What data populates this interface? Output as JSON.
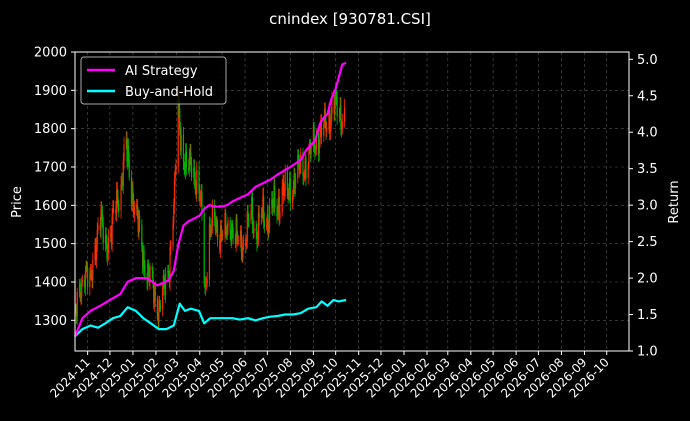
{
  "chart_data": {
    "type": "line",
    "title": "cnindex [930781.CSI]",
    "ylabel_left": "Price",
    "ylabel_right": "Return",
    "xlim": [
      "2024-10-15",
      "2026-10-31"
    ],
    "ylim_left": [
      1220,
      2000
    ],
    "ylim_right": [
      1.0,
      5.1
    ],
    "yticks_left": [
      1300,
      1400,
      1500,
      1600,
      1700,
      1800,
      1900,
      2000
    ],
    "yticks_right": [
      1.0,
      1.5,
      2.0,
      2.5,
      3.0,
      3.5,
      4.0,
      4.5,
      5.0
    ],
    "xticks": [
      "2024-11",
      "2024-12",
      "2025-01",
      "2025-02",
      "2025-03",
      "2025-04",
      "2025-05",
      "2025-06",
      "2025-07",
      "2025-08",
      "2025-09",
      "2025-10",
      "2025-11",
      "2025-12",
      "2026-01",
      "2026-02",
      "2026-03",
      "2026-04",
      "2026-05",
      "2026-06",
      "2026-07",
      "2026-08",
      "2026-09",
      "2026-10"
    ],
    "grid": true,
    "legend_position": "top-left",
    "colors": {
      "up": "#ff2a00",
      "down": "#00b400",
      "ai": "#ff00ff",
      "bh": "#00ffff",
      "background": "#000000",
      "grid": "#555555",
      "text": "#ffffff"
    },
    "series": [
      {
        "name": "AI Strategy",
        "axis": "right",
        "color": "#ff00ff",
        "points": [
          [
            "2024-10-15",
            1.2
          ],
          [
            "2024-10-25",
            1.45
          ],
          [
            "2024-11-05",
            1.55
          ],
          [
            "2024-11-18",
            1.62
          ],
          [
            "2024-12-01",
            1.7
          ],
          [
            "2024-12-15",
            1.78
          ],
          [
            "2024-12-25",
            1.95
          ],
          [
            "2025-01-05",
            2.0
          ],
          [
            "2025-01-20",
            2.0
          ],
          [
            "2025-02-03",
            1.9
          ],
          [
            "2025-02-10",
            1.93
          ],
          [
            "2025-02-18",
            1.97
          ],
          [
            "2025-02-25",
            2.1
          ],
          [
            "2025-03-03",
            2.45
          ],
          [
            "2025-03-10",
            2.72
          ],
          [
            "2025-03-17",
            2.78
          ],
          [
            "2025-03-25",
            2.82
          ],
          [
            "2025-04-01",
            2.86
          ],
          [
            "2025-04-07",
            2.95
          ],
          [
            "2025-04-14",
            3.0
          ],
          [
            "2025-04-21",
            2.98
          ],
          [
            "2025-05-01",
            2.98
          ],
          [
            "2025-05-08",
            3.0
          ],
          [
            "2025-05-15",
            3.05
          ],
          [
            "2025-05-25",
            3.1
          ],
          [
            "2025-06-05",
            3.15
          ],
          [
            "2025-06-15",
            3.25
          ],
          [
            "2025-06-25",
            3.3
          ],
          [
            "2025-07-05",
            3.35
          ],
          [
            "2025-07-15",
            3.42
          ],
          [
            "2025-07-25",
            3.48
          ],
          [
            "2025-08-05",
            3.55
          ],
          [
            "2025-08-15",
            3.62
          ],
          [
            "2025-08-22",
            3.75
          ],
          [
            "2025-08-28",
            3.82
          ],
          [
            "2025-09-03",
            3.88
          ],
          [
            "2025-09-10",
            4.12
          ],
          [
            "2025-09-15",
            4.2
          ],
          [
            "2025-09-20",
            4.25
          ],
          [
            "2025-09-25",
            4.45
          ],
          [
            "2025-10-01",
            4.6
          ],
          [
            "2025-10-06",
            4.78
          ],
          [
            "2025-10-10",
            4.93
          ],
          [
            "2025-10-15",
            4.95
          ]
        ]
      },
      {
        "name": "Buy-and-Hold",
        "axis": "right",
        "color": "#00ffff",
        "points": [
          [
            "2024-10-15",
            1.2
          ],
          [
            "2024-10-25",
            1.3
          ],
          [
            "2024-11-05",
            1.35
          ],
          [
            "2024-11-15",
            1.32
          ],
          [
            "2024-11-25",
            1.38
          ],
          [
            "2024-12-05",
            1.45
          ],
          [
            "2024-12-15",
            1.48
          ],
          [
            "2024-12-25",
            1.6
          ],
          [
            "2025-01-05",
            1.55
          ],
          [
            "2025-01-15",
            1.45
          ],
          [
            "2025-01-25",
            1.38
          ],
          [
            "2025-02-05",
            1.3
          ],
          [
            "2025-02-15",
            1.3
          ],
          [
            "2025-02-25",
            1.35
          ],
          [
            "2025-03-05",
            1.65
          ],
          [
            "2025-03-12",
            1.55
          ],
          [
            "2025-03-20",
            1.58
          ],
          [
            "2025-03-31",
            1.55
          ],
          [
            "2025-04-07",
            1.38
          ],
          [
            "2025-04-15",
            1.45
          ],
          [
            "2025-04-25",
            1.45
          ],
          [
            "2025-05-05",
            1.45
          ],
          [
            "2025-05-15",
            1.45
          ],
          [
            "2025-05-25",
            1.43
          ],
          [
            "2025-06-05",
            1.45
          ],
          [
            "2025-06-15",
            1.42
          ],
          [
            "2025-06-25",
            1.45
          ],
          [
            "2025-07-05",
            1.47
          ],
          [
            "2025-07-15",
            1.48
          ],
          [
            "2025-07-25",
            1.5
          ],
          [
            "2025-08-05",
            1.5
          ],
          [
            "2025-08-15",
            1.52
          ],
          [
            "2025-08-25",
            1.58
          ],
          [
            "2025-09-05",
            1.6
          ],
          [
            "2025-09-12",
            1.68
          ],
          [
            "2025-09-20",
            1.62
          ],
          [
            "2025-09-28",
            1.7
          ],
          [
            "2025-10-05",
            1.68
          ],
          [
            "2025-10-15",
            1.7
          ]
        ]
      },
      {
        "name": "Price",
        "axis": "left",
        "kind": "candlestick_path",
        "points": [
          [
            "2024-10-15",
            1300
          ],
          [
            "2024-10-22",
            1380
          ],
          [
            "2024-10-28",
            1440
          ],
          [
            "2024-11-04",
            1380
          ],
          [
            "2024-11-11",
            1500
          ],
          [
            "2024-11-18",
            1560
          ],
          [
            "2024-11-25",
            1500
          ],
          [
            "2024-12-02",
            1520
          ],
          [
            "2024-12-09",
            1600
          ],
          [
            "2024-12-16",
            1650
          ],
          [
            "2024-12-22",
            1760
          ],
          [
            "2024-12-29",
            1660
          ],
          [
            "2025-01-05",
            1580
          ],
          [
            "2025-01-12",
            1500
          ],
          [
            "2025-01-19",
            1430
          ],
          [
            "2025-01-26",
            1400
          ],
          [
            "2025-02-05",
            1330
          ],
          [
            "2025-02-12",
            1380
          ],
          [
            "2025-02-19",
            1450
          ],
          [
            "2025-02-26",
            1620
          ],
          [
            "2025-03-03",
            1860
          ],
          [
            "2025-03-08",
            1750
          ],
          [
            "2025-03-14",
            1680
          ],
          [
            "2025-03-21",
            1720
          ],
          [
            "2025-03-28",
            1650
          ],
          [
            "2025-04-04",
            1580
          ],
          [
            "2025-04-08",
            1380
          ],
          [
            "2025-04-14",
            1520
          ],
          [
            "2025-04-21",
            1560
          ],
          [
            "2025-04-28",
            1530
          ],
          [
            "2025-05-05",
            1520
          ],
          [
            "2025-05-12",
            1560
          ],
          [
            "2025-05-19",
            1510
          ],
          [
            "2025-05-26",
            1500
          ],
          [
            "2025-06-02",
            1520
          ],
          [
            "2025-06-09",
            1580
          ],
          [
            "2025-06-16",
            1530
          ],
          [
            "2025-06-23",
            1570
          ],
          [
            "2025-06-30",
            1560
          ],
          [
            "2025-07-07",
            1600
          ],
          [
            "2025-07-14",
            1580
          ],
          [
            "2025-07-21",
            1650
          ],
          [
            "2025-07-28",
            1620
          ],
          [
            "2025-08-04",
            1660
          ],
          [
            "2025-08-11",
            1690
          ],
          [
            "2025-08-18",
            1700
          ],
          [
            "2025-08-25",
            1720
          ],
          [
            "2025-09-01",
            1760
          ],
          [
            "2025-09-08",
            1780
          ],
          [
            "2025-09-15",
            1800
          ],
          [
            "2025-09-22",
            1830
          ],
          [
            "2025-09-29",
            1860
          ],
          [
            "2025-10-06",
            1840
          ],
          [
            "2025-10-13",
            1830
          ]
        ]
      }
    ]
  }
}
